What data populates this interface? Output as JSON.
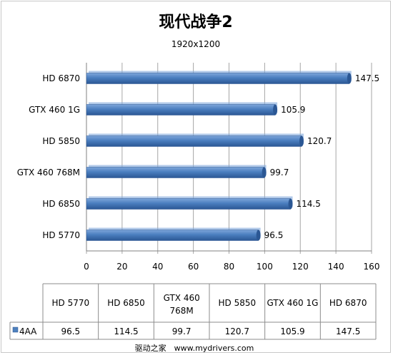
{
  "chart_data": {
    "type": "bar",
    "orientation": "horizontal",
    "title": "现代战争2",
    "subtitle": "1920x1200",
    "categories": [
      "HD 5770",
      "HD 6850",
      "GTX 460 768M",
      "HD 5850",
      "GTX 460 1G",
      "HD 6870"
    ],
    "table_headers": [
      "HD 5770",
      "HD 6850",
      "GTX 460\n768M",
      "HD 5850",
      "GTX 460 1G",
      "HD 6870"
    ],
    "series": [
      {
        "name": "4AA",
        "values": [
          96.5,
          114.5,
          99.7,
          120.7,
          105.9,
          147.5
        ]
      }
    ],
    "value_labels": [
      "96.5",
      "114.5",
      "99.7",
      "120.7",
      "105.9",
      "147.5"
    ],
    "xlim": [
      0,
      160
    ],
    "xticks": [
      0,
      20,
      40,
      60,
      80,
      100,
      120,
      140,
      160
    ],
    "grid": true,
    "legend": "data-table",
    "colors": {
      "bar": "#4a7ebf",
      "bar_light": "#7ea6da",
      "bar_dark": "#2b5794",
      "grid": "#a6a6a6",
      "legend_key": "#4f81bd"
    }
  },
  "footer": "驱动之家　www.mydrivers.com"
}
